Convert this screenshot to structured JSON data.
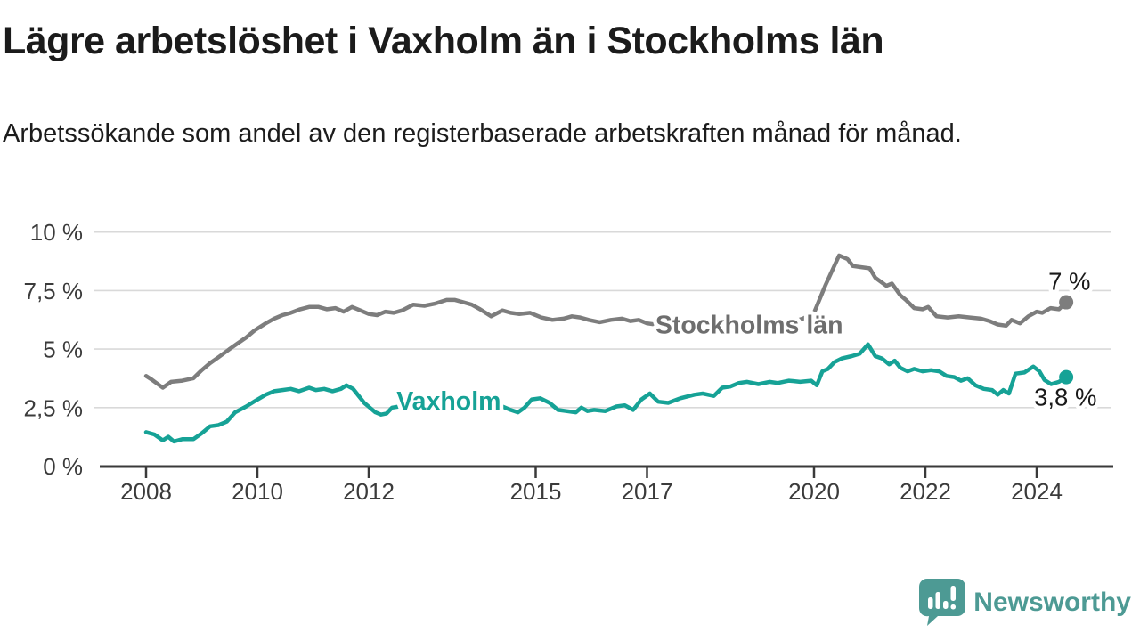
{
  "header": {
    "title": "Lägre arbetslöshet i Vaxholm än i Stockholms län",
    "subtitle": "Arbetssökande som andel av den registerbaserade arbetskraften månad för månad."
  },
  "footer": {
    "brand": "Newsworthy",
    "brand_color": "#4d9a94",
    "logo_icon": "newsworthy-speech-bubble-bar-chart-icon"
  },
  "colors": {
    "background": "#ffffff",
    "title_text": "#1b1b1b",
    "axis_text": "#3b3b3b",
    "axis_line": "#3a3a3a",
    "gridline": "#d9d9d9",
    "end_label_text": "#1a1a1a"
  },
  "chart_data": {
    "type": "line",
    "title": "Lägre arbetslöshet i Vaxholm än i Stockholms län",
    "subtitle": "Arbetssökande som andel av den registerbaserade arbetskraften månad för månad.",
    "xlabel": "",
    "ylabel": "",
    "unit": "%",
    "grid": true,
    "ylim": [
      0,
      10
    ],
    "xlim": [
      2007.17,
      2025.38
    ],
    "yticks": [
      {
        "value": 0,
        "label": "0 %"
      },
      {
        "value": 2.5,
        "label": "2,5 %"
      },
      {
        "value": 5,
        "label": "5 %"
      },
      {
        "value": 7.5,
        "label": "7,5 %"
      },
      {
        "value": 10,
        "label": "10 %"
      }
    ],
    "xticks": [
      {
        "value": 2008,
        "label": "2008"
      },
      {
        "value": 2010,
        "label": "2010"
      },
      {
        "value": 2012,
        "label": "2012"
      },
      {
        "value": 2015,
        "label": "2015"
      },
      {
        "value": 2017,
        "label": "2017"
      },
      {
        "value": 2020,
        "label": "2020"
      },
      {
        "value": 2022,
        "label": "2022"
      },
      {
        "value": 2024,
        "label": "2024"
      }
    ],
    "series": [
      {
        "name": "Stockholms län",
        "color": "#7d7d7d",
        "label_color": "#6e6e6e",
        "inline_label": {
          "x": 2017.15,
          "y": 6.05
        },
        "end_label": "7 %",
        "end_value": 7.0,
        "points": [
          [
            2008.0,
            3.85
          ],
          [
            2008.1,
            3.7
          ],
          [
            2008.3,
            3.35
          ],
          [
            2008.45,
            3.6
          ],
          [
            2008.65,
            3.65
          ],
          [
            2008.85,
            3.75
          ],
          [
            2009.0,
            4.1
          ],
          [
            2009.15,
            4.4
          ],
          [
            2009.3,
            4.65
          ],
          [
            2009.5,
            5.0
          ],
          [
            2009.65,
            5.25
          ],
          [
            2009.8,
            5.5
          ],
          [
            2009.95,
            5.8
          ],
          [
            2010.15,
            6.1
          ],
          [
            2010.3,
            6.3
          ],
          [
            2010.45,
            6.45
          ],
          [
            2010.6,
            6.55
          ],
          [
            2010.77,
            6.7
          ],
          [
            2010.93,
            6.8
          ],
          [
            2011.1,
            6.8
          ],
          [
            2011.25,
            6.7
          ],
          [
            2011.4,
            6.75
          ],
          [
            2011.55,
            6.6
          ],
          [
            2011.7,
            6.8
          ],
          [
            2011.85,
            6.65
          ],
          [
            2012.0,
            6.5
          ],
          [
            2012.15,
            6.45
          ],
          [
            2012.3,
            6.6
          ],
          [
            2012.45,
            6.55
          ],
          [
            2012.6,
            6.65
          ],
          [
            2012.8,
            6.9
          ],
          [
            2013.0,
            6.85
          ],
          [
            2013.2,
            6.95
          ],
          [
            2013.4,
            7.1
          ],
          [
            2013.55,
            7.1
          ],
          [
            2013.7,
            7.0
          ],
          [
            2013.85,
            6.9
          ],
          [
            2014.0,
            6.7
          ],
          [
            2014.2,
            6.4
          ],
          [
            2014.4,
            6.65
          ],
          [
            2014.55,
            6.55
          ],
          [
            2014.7,
            6.5
          ],
          [
            2014.9,
            6.55
          ],
          [
            2015.1,
            6.35
          ],
          [
            2015.3,
            6.25
          ],
          [
            2015.5,
            6.3
          ],
          [
            2015.65,
            6.4
          ],
          [
            2015.8,
            6.35
          ],
          [
            2015.95,
            6.25
          ],
          [
            2016.15,
            6.15
          ],
          [
            2016.35,
            6.25
          ],
          [
            2016.55,
            6.3
          ],
          [
            2016.7,
            6.2
          ],
          [
            2016.85,
            6.25
          ],
          [
            2017.0,
            6.1
          ],
          [
            2017.15,
            6.05
          ],
          [
            2017.4,
            6.0
          ],
          [
            2017.7,
            5.95
          ],
          [
            2018.0,
            5.9
          ],
          [
            2018.3,
            5.95
          ],
          [
            2018.6,
            5.9
          ],
          [
            2018.9,
            5.95
          ],
          [
            2019.2,
            6.0
          ],
          [
            2019.5,
            6.1
          ],
          [
            2019.8,
            6.3
          ],
          [
            2020.0,
            6.55
          ],
          [
            2020.2,
            7.7
          ],
          [
            2020.45,
            9.0
          ],
          [
            2020.6,
            8.85
          ],
          [
            2020.7,
            8.55
          ],
          [
            2020.85,
            8.5
          ],
          [
            2021.0,
            8.45
          ],
          [
            2021.1,
            8.05
          ],
          [
            2021.3,
            7.7
          ],
          [
            2021.4,
            7.8
          ],
          [
            2021.55,
            7.3
          ],
          [
            2021.65,
            7.1
          ],
          [
            2021.8,
            6.75
          ],
          [
            2021.95,
            6.7
          ],
          [
            2022.05,
            6.8
          ],
          [
            2022.2,
            6.4
          ],
          [
            2022.4,
            6.35
          ],
          [
            2022.6,
            6.4
          ],
          [
            2022.8,
            6.35
          ],
          [
            2023.0,
            6.3
          ],
          [
            2023.15,
            6.2
          ],
          [
            2023.3,
            6.05
          ],
          [
            2023.45,
            6.0
          ],
          [
            2023.55,
            6.25
          ],
          [
            2023.7,
            6.1
          ],
          [
            2023.85,
            6.4
          ],
          [
            2024.0,
            6.6
          ],
          [
            2024.1,
            6.55
          ],
          [
            2024.25,
            6.75
          ],
          [
            2024.4,
            6.7
          ],
          [
            2024.53,
            7.0
          ]
        ]
      },
      {
        "name": "Vaxholm",
        "color": "#16a296",
        "label_color": "#16a296",
        "inline_label": {
          "x": 2012.5,
          "y": 2.8
        },
        "end_label": "3,8 %",
        "end_value": 3.8,
        "points": [
          [
            2008.0,
            1.45
          ],
          [
            2008.15,
            1.35
          ],
          [
            2008.3,
            1.1
          ],
          [
            2008.4,
            1.25
          ],
          [
            2008.5,
            1.05
          ],
          [
            2008.65,
            1.15
          ],
          [
            2008.85,
            1.15
          ],
          [
            2009.0,
            1.4
          ],
          [
            2009.15,
            1.7
          ],
          [
            2009.3,
            1.75
          ],
          [
            2009.45,
            1.9
          ],
          [
            2009.6,
            2.3
          ],
          [
            2009.8,
            2.55
          ],
          [
            2009.97,
            2.8
          ],
          [
            2010.15,
            3.05
          ],
          [
            2010.3,
            3.2
          ],
          [
            2010.45,
            3.25
          ],
          [
            2010.6,
            3.3
          ],
          [
            2010.75,
            3.2
          ],
          [
            2010.93,
            3.35
          ],
          [
            2011.05,
            3.25
          ],
          [
            2011.2,
            3.3
          ],
          [
            2011.35,
            3.2
          ],
          [
            2011.5,
            3.3
          ],
          [
            2011.6,
            3.45
          ],
          [
            2011.72,
            3.3
          ],
          [
            2011.82,
            3.0
          ],
          [
            2011.92,
            2.7
          ],
          [
            2012.02,
            2.5
          ],
          [
            2012.12,
            2.3
          ],
          [
            2012.22,
            2.2
          ],
          [
            2012.32,
            2.25
          ],
          [
            2012.42,
            2.5
          ],
          [
            2012.55,
            2.55
          ],
          [
            2012.7,
            2.6
          ],
          [
            2012.85,
            2.8
          ],
          [
            2013.0,
            2.9
          ],
          [
            2013.15,
            2.9
          ],
          [
            2013.3,
            3.0
          ],
          [
            2013.45,
            2.95
          ],
          [
            2013.6,
            2.85
          ],
          [
            2013.75,
            2.95
          ],
          [
            2013.9,
            2.9
          ],
          [
            2014.05,
            2.85
          ],
          [
            2014.2,
            2.7
          ],
          [
            2014.4,
            2.55
          ],
          [
            2014.55,
            2.4
          ],
          [
            2014.68,
            2.3
          ],
          [
            2014.8,
            2.5
          ],
          [
            2014.93,
            2.85
          ],
          [
            2015.08,
            2.9
          ],
          [
            2015.25,
            2.7
          ],
          [
            2015.4,
            2.4
          ],
          [
            2015.55,
            2.35
          ],
          [
            2015.72,
            2.3
          ],
          [
            2015.82,
            2.5
          ],
          [
            2015.93,
            2.35
          ],
          [
            2016.05,
            2.4
          ],
          [
            2016.25,
            2.35
          ],
          [
            2016.45,
            2.55
          ],
          [
            2016.6,
            2.6
          ],
          [
            2016.75,
            2.4
          ],
          [
            2016.9,
            2.85
          ],
          [
            2017.05,
            3.1
          ],
          [
            2017.2,
            2.75
          ],
          [
            2017.38,
            2.7
          ],
          [
            2017.6,
            2.9
          ],
          [
            2017.85,
            3.05
          ],
          [
            2018.0,
            3.1
          ],
          [
            2018.2,
            3.0
          ],
          [
            2018.35,
            3.35
          ],
          [
            2018.5,
            3.4
          ],
          [
            2018.65,
            3.55
          ],
          [
            2018.8,
            3.6
          ],
          [
            2019.0,
            3.5
          ],
          [
            2019.2,
            3.6
          ],
          [
            2019.35,
            3.55
          ],
          [
            2019.55,
            3.65
          ],
          [
            2019.75,
            3.6
          ],
          [
            2019.95,
            3.65
          ],
          [
            2020.05,
            3.45
          ],
          [
            2020.15,
            4.05
          ],
          [
            2020.25,
            4.15
          ],
          [
            2020.37,
            4.45
          ],
          [
            2020.5,
            4.6
          ],
          [
            2020.68,
            4.7
          ],
          [
            2020.82,
            4.8
          ],
          [
            2020.97,
            5.2
          ],
          [
            2021.1,
            4.7
          ],
          [
            2021.22,
            4.6
          ],
          [
            2021.35,
            4.35
          ],
          [
            2021.45,
            4.5
          ],
          [
            2021.55,
            4.2
          ],
          [
            2021.68,
            4.05
          ],
          [
            2021.8,
            4.15
          ],
          [
            2021.95,
            4.05
          ],
          [
            2022.1,
            4.1
          ],
          [
            2022.25,
            4.05
          ],
          [
            2022.38,
            3.85
          ],
          [
            2022.52,
            3.8
          ],
          [
            2022.64,
            3.65
          ],
          [
            2022.76,
            3.75
          ],
          [
            2022.9,
            3.45
          ],
          [
            2023.05,
            3.3
          ],
          [
            2023.2,
            3.25
          ],
          [
            2023.3,
            3.05
          ],
          [
            2023.4,
            3.25
          ],
          [
            2023.5,
            3.1
          ],
          [
            2023.62,
            3.95
          ],
          [
            2023.78,
            4.0
          ],
          [
            2023.94,
            4.25
          ],
          [
            2024.05,
            4.05
          ],
          [
            2024.14,
            3.68
          ],
          [
            2024.26,
            3.5
          ],
          [
            2024.4,
            3.6
          ],
          [
            2024.53,
            3.8
          ]
        ]
      }
    ]
  }
}
